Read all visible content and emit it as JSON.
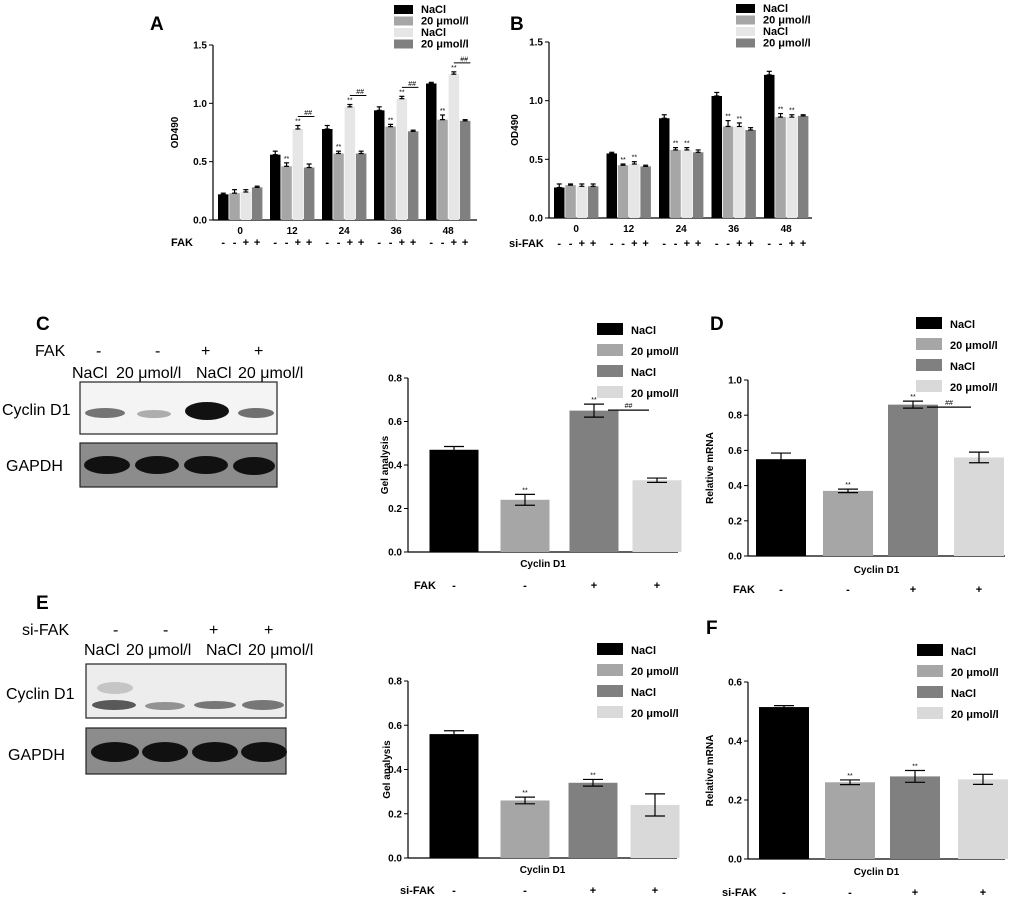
{
  "colors": {
    "black": "#000000",
    "mid": "#a6a6a6",
    "dark": "#808080",
    "light": "#d9d9d9",
    "lighter": "#e6e6e6"
  },
  "panels": {
    "A": {
      "label": "A",
      "legend": [
        "NaCl",
        "20 μmol/l",
        "NaCl",
        "20 μmol/l"
      ]
    },
    "B": {
      "label": "B",
      "legend": [
        "NaCl",
        "20 μmol/l",
        "NaCl",
        "20 μmol/l"
      ]
    },
    "C": {
      "label": "C",
      "treatment": "FAK",
      "signs": [
        "-",
        "-",
        "+",
        "+"
      ],
      "lanes": [
        "NaCl",
        "20 μmol/l",
        "NaCl",
        "20 μmol/l"
      ],
      "rows": [
        "Cyclin D1",
        "GAPDH"
      ],
      "legend": [
        "NaCl",
        "20 μmol/l",
        "NaCl",
        "20 μmol/l"
      ]
    },
    "D": {
      "label": "D",
      "legend": [
        "NaCl",
        "20 μmol/l",
        "NaCl",
        "20 μmol/l"
      ]
    },
    "E": {
      "label": "E",
      "treatment": "si-FAK",
      "signs": [
        "-",
        "-",
        "+",
        "+"
      ],
      "lanes": [
        "NaCl",
        "20 μmol/l",
        "NaCl",
        "20 μmol/l"
      ],
      "rows": [
        "Cyclin D1",
        "GAPDH"
      ],
      "legend": [
        "NaCl",
        "20 μmol/l",
        "NaCl",
        "20 μmol/l"
      ]
    },
    "F": {
      "label": "F",
      "legend": [
        "NaCl",
        "20 μmol/l",
        "NaCl",
        "20 μmol/l"
      ]
    }
  },
  "chart_data": [
    {
      "id": "A",
      "type": "bar",
      "ylabel": "OD490",
      "xlabel": "",
      "ylim": [
        0,
        1.5
      ],
      "yticks": [
        "0.0",
        "0.5",
        "1.0",
        "1.5"
      ],
      "categories": [
        "0",
        "12",
        "24",
        "36",
        "48"
      ],
      "treatment_label": "FAK",
      "treatment_signs": [
        "-",
        "-",
        "+",
        "+"
      ],
      "series": [
        {
          "name": "NaCl",
          "values": [
            0.22,
            0.56,
            0.78,
            0.94,
            1.17
          ],
          "errors": [
            0.01,
            0.03,
            0.03,
            0.03,
            0.01
          ]
        },
        {
          "name": "20 μmol/l",
          "values": [
            0.23,
            0.46,
            0.57,
            0.8,
            0.86
          ],
          "errors": [
            0.03,
            0.03,
            0.02,
            0.02,
            0.04
          ]
        },
        {
          "name": "NaCl",
          "values": [
            0.24,
            0.78,
            0.97,
            1.04,
            1.25
          ],
          "errors": [
            0.02,
            0.03,
            0.02,
            0.02,
            0.02
          ]
        },
        {
          "name": "20 μmol/l",
          "values": [
            0.28,
            0.45,
            0.57,
            0.76,
            0.85
          ],
          "errors": [
            0.01,
            0.03,
            0.02,
            0.01,
            0.01
          ]
        }
      ],
      "annotations": [
        {
          "series": 1,
          "category": 1,
          "text": "**"
        },
        {
          "series": 1,
          "category": 2,
          "text": "**"
        },
        {
          "series": 1,
          "category": 3,
          "text": "**"
        },
        {
          "series": 1,
          "category": 4,
          "text": "**"
        },
        {
          "series": 2,
          "category": 1,
          "text": "**"
        },
        {
          "series": 2,
          "category": 2,
          "text": "**"
        },
        {
          "series": 2,
          "category": 3,
          "text": "**"
        },
        {
          "series": 2,
          "category": 4,
          "text": "**"
        },
        {
          "series": 2,
          "category": 1,
          "text": "##",
          "above_bracket": true
        },
        {
          "series": 2,
          "category": 2,
          "text": "##",
          "above_bracket": true
        },
        {
          "series": 2,
          "category": 3,
          "text": "##",
          "above_bracket": true
        },
        {
          "series": 2,
          "category": 4,
          "text": "##",
          "above_bracket": true
        }
      ]
    },
    {
      "id": "B",
      "type": "bar",
      "ylabel": "OD490",
      "xlabel": "",
      "ylim": [
        0,
        1.5
      ],
      "yticks": [
        "0.0",
        "0.5",
        "1.0",
        "1.5"
      ],
      "categories": [
        "0",
        "12",
        "24",
        "36",
        "48"
      ],
      "treatment_label": "si-FAK",
      "treatment_signs": [
        "-",
        "-",
        "+",
        "+"
      ],
      "series": [
        {
          "name": "NaCl",
          "values": [
            0.26,
            0.55,
            0.85,
            1.04,
            1.22
          ],
          "errors": [
            0.03,
            0.01,
            0.03,
            0.03,
            0.03
          ]
        },
        {
          "name": "20 μmol/l",
          "values": [
            0.28,
            0.45,
            0.58,
            0.78,
            0.86
          ],
          "errors": [
            0.01,
            0.01,
            0.02,
            0.05,
            0.03
          ]
        },
        {
          "name": "NaCl",
          "values": [
            0.27,
            0.46,
            0.58,
            0.78,
            0.86
          ],
          "errors": [
            0.02,
            0.02,
            0.02,
            0.03,
            0.02
          ]
        },
        {
          "name": "20 μmol/l",
          "values": [
            0.27,
            0.44,
            0.56,
            0.75,
            0.87
          ],
          "errors": [
            0.02,
            0.01,
            0.02,
            0.02,
            0.01
          ]
        }
      ],
      "annotations": [
        {
          "series": 1,
          "category": 1,
          "text": "**"
        },
        {
          "series": 1,
          "category": 2,
          "text": "**"
        },
        {
          "series": 1,
          "category": 3,
          "text": "**"
        },
        {
          "series": 1,
          "category": 4,
          "text": "**"
        },
        {
          "series": 2,
          "category": 1,
          "text": "**"
        },
        {
          "series": 2,
          "category": 2,
          "text": "**"
        },
        {
          "series": 2,
          "category": 3,
          "text": "**"
        },
        {
          "series": 2,
          "category": 4,
          "text": "**"
        }
      ]
    },
    {
      "id": "C",
      "type": "bar",
      "ylabel": "Gel analysis",
      "xlabel": "Cyclin D1",
      "ylim": [
        0,
        0.8
      ],
      "yticks": [
        "0.0",
        "0.2",
        "0.4",
        "0.6",
        "0.8"
      ],
      "categories": [
        "NaCl",
        "20 μmol/l",
        "NaCl",
        "20 μmol/l"
      ],
      "treatment_label": "FAK",
      "treatment_signs": [
        "-",
        "-",
        "+",
        "+"
      ],
      "values": [
        0.47,
        0.24,
        0.65,
        0.33
      ],
      "errors": [
        0.015,
        0.025,
        0.03,
        0.01
      ],
      "annotations": [
        {
          "index": 1,
          "text": "**"
        },
        {
          "index": 2,
          "text": "**"
        },
        {
          "index": 2,
          "text": "##",
          "bracket_to": 3
        }
      ]
    },
    {
      "id": "D",
      "type": "bar",
      "ylabel": "Relative mRNA",
      "xlabel": "Cyclin D1",
      "ylim": [
        0,
        1.0
      ],
      "yticks": [
        "0.0",
        "0.2",
        "0.4",
        "0.6",
        "0.8",
        "1.0"
      ],
      "categories": [
        "NaCl",
        "20 μmol/l",
        "NaCl",
        "20 μmol/l"
      ],
      "treatment_label": "FAK",
      "treatment_signs": [
        "-",
        "-",
        "+",
        "+"
      ],
      "values": [
        0.55,
        0.37,
        0.86,
        0.56
      ],
      "errors": [
        0.035,
        0.01,
        0.02,
        0.03
      ],
      "annotations": [
        {
          "index": 1,
          "text": "**"
        },
        {
          "index": 2,
          "text": "**"
        },
        {
          "index": 2,
          "text": "##",
          "bracket_to": 3
        }
      ]
    },
    {
      "id": "E",
      "type": "bar",
      "ylabel": "Gel analysis",
      "xlabel": "Cyclin D1",
      "ylim": [
        0,
        0.8
      ],
      "yticks": [
        "0.0",
        "0.2",
        "0.4",
        "0.6",
        "0.8"
      ],
      "categories": [
        "NaCl",
        "20 μmol/l",
        "NaCl",
        "20 μmol/l"
      ],
      "treatment_label": "si-FAK",
      "treatment_signs": [
        "-",
        "-",
        "+",
        "+"
      ],
      "values": [
        0.56,
        0.26,
        0.34,
        0.24
      ],
      "errors": [
        0.015,
        0.015,
        0.015,
        0.05
      ],
      "annotations": [
        {
          "index": 1,
          "text": "**"
        },
        {
          "index": 2,
          "text": "**"
        }
      ]
    },
    {
      "id": "F",
      "type": "bar",
      "ylabel": "Relative mRNA",
      "xlabel": "Cyclin D1",
      "ylim": [
        0,
        0.6
      ],
      "yticks": [
        "0.0",
        "0.2",
        "0.4",
        "0.6"
      ],
      "categories": [
        "NaCl",
        "20 μmol/l",
        "NaCl",
        "20 μmol/l"
      ],
      "treatment_label": "si-FAK",
      "treatment_signs": [
        "-",
        "-",
        "+",
        "+"
      ],
      "values": [
        0.515,
        0.26,
        0.28,
        0.27
      ],
      "errors": [
        0.005,
        0.008,
        0.02,
        0.017
      ],
      "annotations": [
        {
          "index": 1,
          "text": "**"
        },
        {
          "index": 2,
          "text": "**"
        }
      ]
    }
  ]
}
